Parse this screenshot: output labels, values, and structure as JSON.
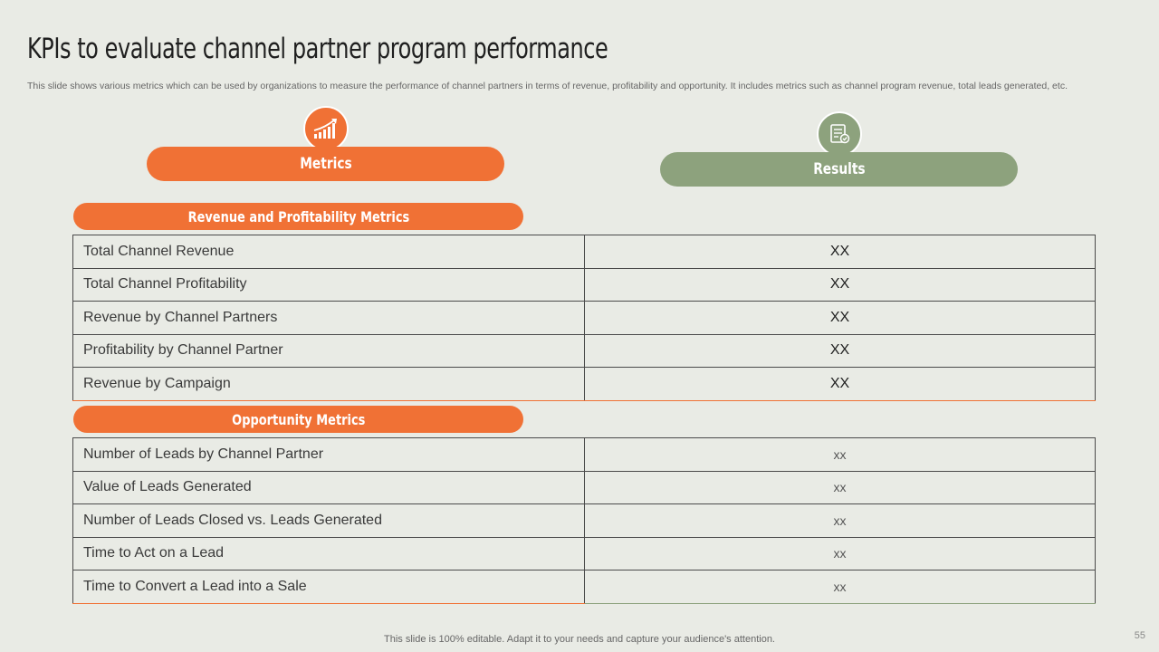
{
  "title": "KPIs to evaluate channel partner program performance",
  "subtitle": "This slide shows various metrics which can be used by organizations to measure the performance of channel partners in terms of revenue, profitability and opportunity. It includes metrics such as channel program revenue, total leads generated, etc.",
  "headers": {
    "metrics": "Metrics",
    "results": "Results",
    "metrics_icon": "bar-chart-growth-icon",
    "results_icon": "report-checklist-icon"
  },
  "sections": [
    {
      "title": "Revenue and Profitability Metrics",
      "rows": [
        {
          "metric": "Total Channel Revenue",
          "result": "XX"
        },
        {
          "metric": "Total Channel Profitability",
          "result": "XX"
        },
        {
          "metric": "Revenue by Channel Partners",
          "result": "XX"
        },
        {
          "metric": "Profitability by Channel Partner",
          "result": "XX"
        },
        {
          "metric": "Revenue by Campaign",
          "result": "XX"
        }
      ]
    },
    {
      "title": "Opportunity Metrics",
      "rows": [
        {
          "metric": "Number of Leads by Channel Partner",
          "result": "xx"
        },
        {
          "metric": "Value of Leads Generated",
          "result": "xx"
        },
        {
          "metric": "Number of Leads Closed vs. Leads Generated",
          "result": "xx"
        },
        {
          "metric": "Time to Act on a Lead",
          "result": "xx"
        },
        {
          "metric": "Time to Convert a Lead into a Sale",
          "result": "xx"
        }
      ]
    }
  ],
  "footer": "This slide is 100% editable. Adapt it to your needs and capture your audience's attention.",
  "page_number": "55",
  "colors": {
    "accent_orange": "#f07135",
    "accent_green": "#8da27d",
    "background": "#e9ebe5"
  }
}
